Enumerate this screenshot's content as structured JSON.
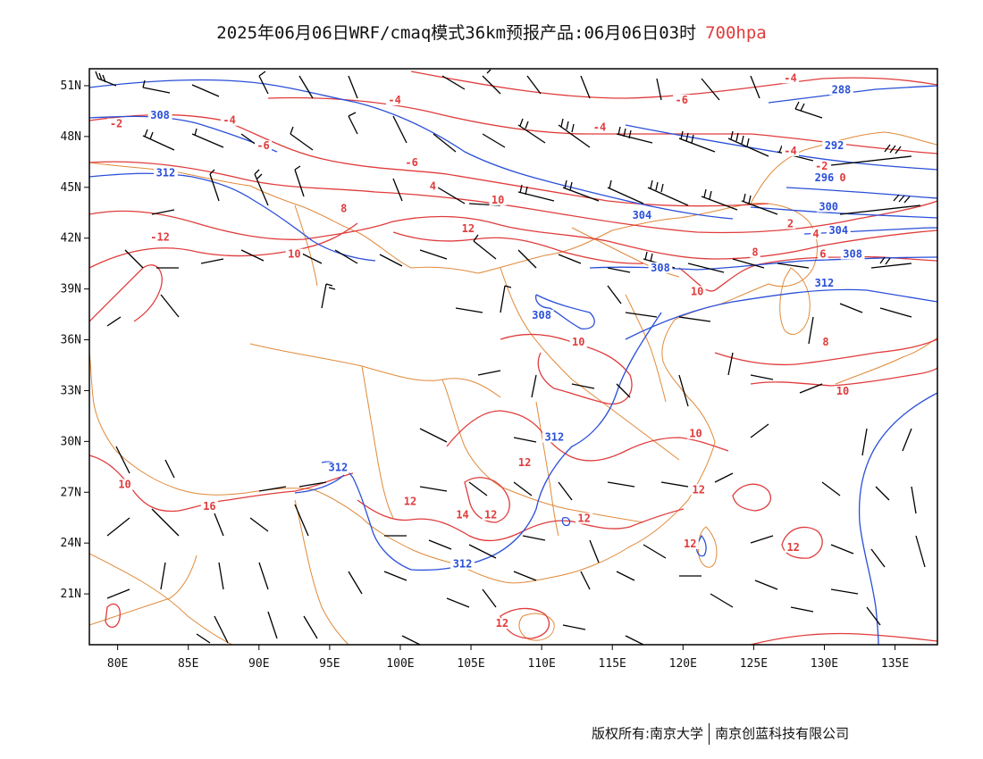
{
  "title": {
    "main": "2025年06月06日WRF/cmaq模式36km预报产品:06月06日03时",
    "level": "700hpa"
  },
  "colors": {
    "temperature": "#e03c3c",
    "height": "#2a4fd8",
    "border": "#e08a3a",
    "wind": "#000000",
    "frame": "#000000"
  },
  "axes": {
    "lon_labels": [
      "80E",
      "85E",
      "90E",
      "95E",
      "100E",
      "105E",
      "110E",
      "115E",
      "120E",
      "125E",
      "130E",
      "135E"
    ],
    "lon_values": [
      80,
      85,
      90,
      95,
      100,
      105,
      110,
      115,
      120,
      125,
      130,
      135
    ],
    "lat_labels": [
      "51N",
      "48N",
      "45N",
      "42N",
      "39N",
      "36N",
      "33N",
      "30N",
      "27N",
      "24N",
      "21N"
    ],
    "lat_values": [
      51,
      48,
      45,
      42,
      39,
      36,
      33,
      30,
      27,
      24,
      21
    ],
    "lon_range": [
      78,
      138
    ],
    "lat_range": [
      18,
      52
    ]
  },
  "height_labels": [
    {
      "text": "288",
      "lon": 131.2,
      "lat": 50.6
    },
    {
      "text": "292",
      "lon": 130.7,
      "lat": 47.3
    },
    {
      "text": "296",
      "lon": 130.0,
      "lat": 45.4
    },
    {
      "text": "300",
      "lon": 130.3,
      "lat": 43.7
    },
    {
      "text": "304",
      "lon": 131.0,
      "lat": 42.3
    },
    {
      "text": "304",
      "lon": 117.1,
      "lat": 43.2
    },
    {
      "text": "308",
      "lon": 83.0,
      "lat": 49.1
    },
    {
      "text": "308",
      "lon": 132.0,
      "lat": 40.9
    },
    {
      "text": "308",
      "lon": 118.4,
      "lat": 40.1
    },
    {
      "text": "308",
      "lon": 110.0,
      "lat": 37.3
    },
    {
      "text": "312",
      "lon": 83.4,
      "lat": 45.7
    },
    {
      "text": "312",
      "lon": 130.0,
      "lat": 39.2
    },
    {
      "text": "312",
      "lon": 110.9,
      "lat": 30.1
    },
    {
      "text": "312",
      "lon": 95.6,
      "lat": 28.3
    },
    {
      "text": "312",
      "lon": 104.4,
      "lat": 22.6
    }
  ],
  "temperature_labels": [
    {
      "text": "-4",
      "lon": 127.6,
      "lat": 51.3
    },
    {
      "text": "-4",
      "lon": 99.6,
      "lat": 50.0
    },
    {
      "text": "-6",
      "lon": 119.9,
      "lat": 50.0
    },
    {
      "text": "-4",
      "lon": 87.9,
      "lat": 48.8
    },
    {
      "text": "-4",
      "lon": 114.1,
      "lat": 48.4
    },
    {
      "text": "-2",
      "lon": 79.9,
      "lat": 48.6
    },
    {
      "text": "-6",
      "lon": 90.3,
      "lat": 47.3
    },
    {
      "text": "-4",
      "lon": 127.6,
      "lat": 47.0
    },
    {
      "text": "-6",
      "lon": 100.8,
      "lat": 46.3
    },
    {
      "text": "-2",
      "lon": 129.8,
      "lat": 46.1
    },
    {
      "text": "0",
      "lon": 131.3,
      "lat": 45.4
    },
    {
      "text": "4",
      "lon": 102.3,
      "lat": 44.9
    },
    {
      "text": "10",
      "lon": 106.9,
      "lat": 44.1
    },
    {
      "text": "8",
      "lon": 96.0,
      "lat": 43.6
    },
    {
      "text": "2",
      "lon": 127.6,
      "lat": 42.7
    },
    {
      "text": "12",
      "lon": 104.8,
      "lat": 42.4
    },
    {
      "text": "4",
      "lon": 129.4,
      "lat": 42.1
    },
    {
      "text": "-12",
      "lon": 83.0,
      "lat": 41.9
    },
    {
      "text": "10",
      "lon": 92.5,
      "lat": 40.9
    },
    {
      "text": "8",
      "lon": 125.1,
      "lat": 41.0
    },
    {
      "text": "6",
      "lon": 129.9,
      "lat": 40.9
    },
    {
      "text": "10",
      "lon": 121.0,
      "lat": 38.7
    },
    {
      "text": "10",
      "lon": 112.6,
      "lat": 35.7
    },
    {
      "text": "8",
      "lon": 130.1,
      "lat": 35.7
    },
    {
      "text": "10",
      "lon": 131.3,
      "lat": 32.8
    },
    {
      "text": "10",
      "lon": 120.9,
      "lat": 30.3
    },
    {
      "text": "12",
      "lon": 108.8,
      "lat": 28.6
    },
    {
      "text": "10",
      "lon": 80.5,
      "lat": 27.3
    },
    {
      "text": "12",
      "lon": 121.1,
      "lat": 27.0
    },
    {
      "text": "16",
      "lon": 86.5,
      "lat": 26.0
    },
    {
      "text": "12",
      "lon": 100.7,
      "lat": 26.3
    },
    {
      "text": "14",
      "lon": 104.4,
      "lat": 25.5
    },
    {
      "text": "12",
      "lon": 106.4,
      "lat": 25.5
    },
    {
      "text": "12",
      "lon": 113.0,
      "lat": 25.3
    },
    {
      "text": "12",
      "lon": 120.5,
      "lat": 23.8
    },
    {
      "text": "12",
      "lon": 127.8,
      "lat": 23.6
    },
    {
      "text": "12",
      "lon": 107.2,
      "lat": 19.1
    }
  ],
  "footer": {
    "left": "版权所有:南京大学",
    "right": "南京创蓝科技有限公司"
  }
}
